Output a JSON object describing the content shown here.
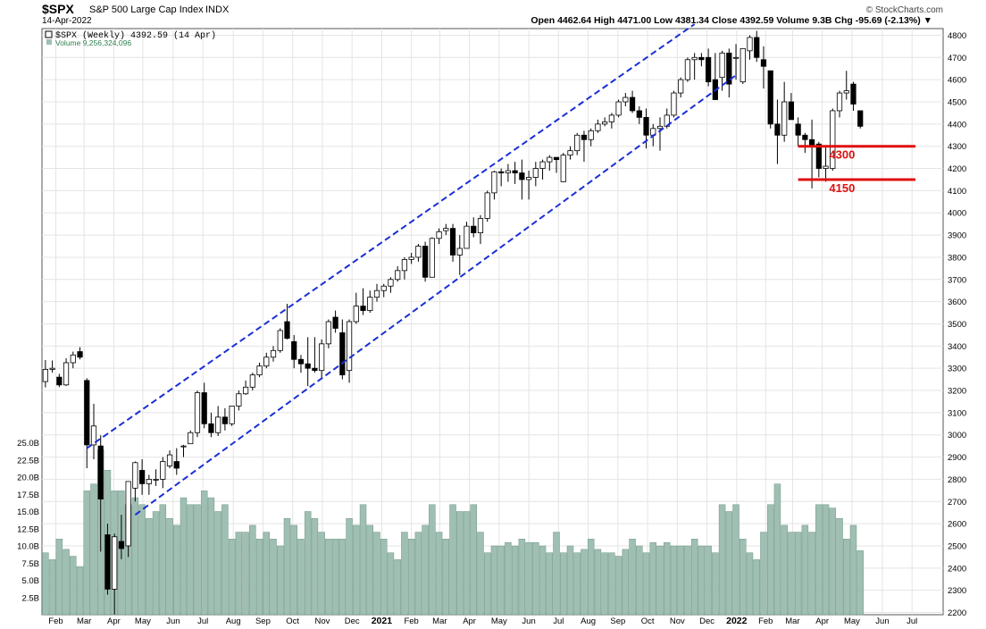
{
  "header": {
    "symbol": "$SPX",
    "name": "S&P 500 Large Cap Index",
    "exchange": "INDX",
    "date": "14-Apr-2022",
    "quote": "Open 4462.64  High 4471.00  Low 4381.34  Close 4392.59  Volume 9.3B  Chg -95.69 (-2.13%) ▼",
    "brand": "© StockCharts.com"
  },
  "legend": {
    "price": "$SPX (Weekly) 4392.59 (14 Apr)",
    "volume": "Volume 9,256,324,096"
  },
  "colors": {
    "up": "#ffffff",
    "down": "#000000",
    "volume": "#9fbfb2",
    "volume_edge": "#6f9586",
    "channel": "#1a2fd6",
    "support": "#e01010",
    "grid": "#e4e4e4"
  },
  "annotations": [
    {
      "label": "4300",
      "value": 4300
    },
    {
      "label": "4150",
      "value": 4150
    }
  ],
  "chart_data": {
    "type": "candlestick",
    "title": "$SPX S&P 500 Large Cap Index INDX",
    "y_price_range": [
      2190,
      4830
    ],
    "y_price_ticks": [
      2200,
      2300,
      2400,
      2500,
      2600,
      2700,
      2800,
      2900,
      3000,
      3100,
      3200,
      3300,
      3400,
      3500,
      3600,
      3700,
      3800,
      3900,
      4000,
      4100,
      4200,
      4300,
      4400,
      4500,
      4600,
      4700,
      4800
    ],
    "y_volume_ticks": [
      "2.5B",
      "5.0B",
      "7.5B",
      "10.0B",
      "12.5B",
      "15.0B",
      "17.5B",
      "20.0B",
      "22.5B",
      "25.0B"
    ],
    "y_volume_values": [
      2.5,
      5.0,
      7.5,
      10.0,
      12.5,
      15.0,
      17.5,
      20.0,
      22.5,
      25.0
    ],
    "x_ticks": [
      "Feb",
      "Mar",
      "Apr",
      "May",
      "Jun",
      "Jul",
      "Aug",
      "Sep",
      "Oct",
      "Nov",
      "Dec",
      "2021",
      "Feb",
      "Mar",
      "Apr",
      "May",
      "Jun",
      "Jul",
      "Aug",
      "Sep",
      "Oct",
      "Nov",
      "Dec",
      "2022",
      "Feb",
      "Mar",
      "Apr",
      "May",
      "Jun",
      "Jul"
    ],
    "x_tick_week": [
      1.5,
      5.6,
      9.9,
      14.1,
      18.5,
      22.8,
      27.2,
      31.5,
      35.8,
      40.1,
      44.4,
      48.7,
      53,
      57.1,
      61.4,
      65.7,
      70,
      74.3,
      78.6,
      82.9,
      87.2,
      91.5,
      95.8,
      100.1,
      104.3,
      108.2,
      112.5,
      116.8,
      121.2,
      125.5
    ],
    "x_week_range": [
      -0.5,
      130
    ],
    "channels": [
      {
        "name": "upper",
        "from": {
          "week": 6,
          "value": 2940
        },
        "to": {
          "week": 94,
          "value": 4850
        }
      },
      {
        "name": "lower",
        "from": {
          "week": 13,
          "value": 2640
        },
        "to": {
          "week": 100,
          "value": 4620
        }
      }
    ],
    "weeks": [
      {
        "o": 3240,
        "h": 3337,
        "l": 3214,
        "c": 3295,
        "v": 9.0
      },
      {
        "o": 3295,
        "h": 3335,
        "l": 3280,
        "c": 3300,
        "v": 8.0
      },
      {
        "o": 3260,
        "h": 3275,
        "l": 3215,
        "c": 3225,
        "v": 11.0
      },
      {
        "o": 3225,
        "h": 3345,
        "l": 3220,
        "c": 3325,
        "v": 9.5
      },
      {
        "o": 3325,
        "h": 3375,
        "l": 3300,
        "c": 3360,
        "v": 8.5
      },
      {
        "o": 3375,
        "h": 3395,
        "l": 3340,
        "c": 3350,
        "v": 7.0
      },
      {
        "o": 3245,
        "h": 3255,
        "l": 2850,
        "c": 2955,
        "v": 18.0
      },
      {
        "o": 2955,
        "h": 3140,
        "l": 2890,
        "c": 3040,
        "v": 19.0
      },
      {
        "o": 2950,
        "h": 2998,
        "l": 2474,
        "c": 2711,
        "v": 24.0
      },
      {
        "o": 2550,
        "h": 2600,
        "l": 2280,
        "c": 2305,
        "v": 21.0
      },
      {
        "o": 2305,
        "h": 2555,
        "l": 2191,
        "c": 2541,
        "v": 18.0
      },
      {
        "o": 2520,
        "h": 2640,
        "l": 2440,
        "c": 2488,
        "v": 18.0
      },
      {
        "o": 2500,
        "h": 2790,
        "l": 2450,
        "c": 2790,
        "v": 16.0
      },
      {
        "o": 2760,
        "h": 2880,
        "l": 2700,
        "c": 2875,
        "v": 17.0
      },
      {
        "o": 2840,
        "h": 2890,
        "l": 2730,
        "c": 2780,
        "v": 16.0
      },
      {
        "o": 2780,
        "h": 2820,
        "l": 2730,
        "c": 2800,
        "v": 14.0
      },
      {
        "o": 2800,
        "h": 2845,
        "l": 2770,
        "c": 2800,
        "v": 15.0
      },
      {
        "o": 2800,
        "h": 2900,
        "l": 2760,
        "c": 2880,
        "v": 16.0
      },
      {
        "o": 2860,
        "h": 2930,
        "l": 2850,
        "c": 2910,
        "v": 14.0
      },
      {
        "o": 2880,
        "h": 2940,
        "l": 2820,
        "c": 2850,
        "v": 13.0
      },
      {
        "o": 2950,
        "h": 2955,
        "l": 2900,
        "c": 2950,
        "v": 17.0
      },
      {
        "o": 2960,
        "h": 3020,
        "l": 2990,
        "c": 3010,
        "v": 16.0
      },
      {
        "o": 3010,
        "h": 3200,
        "l": 2990,
        "c": 3190,
        "v": 16.0
      },
      {
        "o": 3190,
        "h": 3235,
        "l": 3030,
        "c": 3050,
        "v": 18.0
      },
      {
        "o": 3050,
        "h": 3100,
        "l": 2990,
        "c": 3010,
        "v": 17.0
      },
      {
        "o": 3010,
        "h": 3130,
        "l": 2995,
        "c": 3080,
        "v": 15.0
      },
      {
        "o": 3080,
        "h": 3120,
        "l": 3020,
        "c": 3050,
        "v": 16.0
      },
      {
        "o": 3050,
        "h": 3130,
        "l": 3040,
        "c": 3130,
        "v": 11.0
      },
      {
        "o": 3130,
        "h": 3200,
        "l": 3110,
        "c": 3185,
        "v": 12.0
      },
      {
        "o": 3185,
        "h": 3245,
        "l": 3180,
        "c": 3215,
        "v": 12.0
      },
      {
        "o": 3215,
        "h": 3280,
        "l": 3200,
        "c": 3270,
        "v": 13.0
      },
      {
        "o": 3270,
        "h": 3325,
        "l": 3260,
        "c": 3310,
        "v": 11.0
      },
      {
        "o": 3310,
        "h": 3370,
        "l": 3300,
        "c": 3350,
        "v": 12.0
      },
      {
        "o": 3350,
        "h": 3400,
        "l": 3330,
        "c": 3380,
        "v": 11.0
      },
      {
        "o": 3380,
        "h": 3480,
        "l": 3370,
        "c": 3470,
        "v": 10.0
      },
      {
        "o": 3510,
        "h": 3590,
        "l": 3430,
        "c": 3435,
        "v": 14.0
      },
      {
        "o": 3420,
        "h": 3450,
        "l": 3300,
        "c": 3340,
        "v": 13.0
      },
      {
        "o": 3340,
        "h": 3360,
        "l": 3280,
        "c": 3320,
        "v": 11.0
      },
      {
        "o": 3320,
        "h": 3440,
        "l": 3220,
        "c": 3300,
        "v": 15.0
      },
      {
        "o": 3300,
        "h": 3440,
        "l": 3280,
        "c": 3290,
        "v": 14.0
      },
      {
        "o": 3290,
        "h": 3430,
        "l": 3250,
        "c": 3410,
        "v": 12.0
      },
      {
        "o": 3410,
        "h": 3520,
        "l": 3390,
        "c": 3510,
        "v": 11.0
      },
      {
        "o": 3530,
        "h": 3560,
        "l": 3460,
        "c": 3480,
        "v": 11.0
      },
      {
        "o": 3460,
        "h": 3520,
        "l": 3250,
        "c": 3270,
        "v": 11.0
      },
      {
        "o": 3290,
        "h": 3520,
        "l": 3235,
        "c": 3510,
        "v": 14.0
      },
      {
        "o": 3510,
        "h": 3640,
        "l": 3500,
        "c": 3580,
        "v": 13.0
      },
      {
        "o": 3580,
        "h": 3660,
        "l": 3540,
        "c": 3560,
        "v": 16.0
      },
      {
        "o": 3560,
        "h": 3650,
        "l": 3550,
        "c": 3620,
        "v": 13.0
      },
      {
        "o": 3620,
        "h": 3680,
        "l": 3600,
        "c": 3650,
        "v": 12.0
      },
      {
        "o": 3650,
        "h": 3680,
        "l": 3620,
        "c": 3670,
        "v": 11.0
      },
      {
        "o": 3670,
        "h": 3710,
        "l": 3640,
        "c": 3700,
        "v": 9.0
      },
      {
        "o": 3700,
        "h": 3760,
        "l": 3690,
        "c": 3740,
        "v": 8.0
      },
      {
        "o": 3740,
        "h": 3800,
        "l": 3700,
        "c": 3790,
        "v": 12.0
      },
      {
        "o": 3790,
        "h": 3820,
        "l": 3770,
        "c": 3800,
        "v": 11.0
      },
      {
        "o": 3800,
        "h": 3860,
        "l": 3780,
        "c": 3850,
        "v": 12.0
      },
      {
        "o": 3850,
        "h": 3870,
        "l": 3690,
        "c": 3710,
        "v": 13.0
      },
      {
        "o": 3710,
        "h": 3890,
        "l": 3710,
        "c": 3885,
        "v": 16.0
      },
      {
        "o": 3885,
        "h": 3930,
        "l": 3860,
        "c": 3915,
        "v": 12.0
      },
      {
        "o": 3920,
        "h": 3950,
        "l": 3900,
        "c": 3930,
        "v": 11.0
      },
      {
        "o": 3930,
        "h": 3950,
        "l": 3780,
        "c": 3810,
        "v": 16.0
      },
      {
        "o": 3810,
        "h": 3900,
        "l": 3720,
        "c": 3840,
        "v": 15.0
      },
      {
        "o": 3840,
        "h": 3960,
        "l": 3840,
        "c": 3940,
        "v": 15.0
      },
      {
        "o": 3940,
        "h": 3980,
        "l": 3890,
        "c": 3910,
        "v": 16.0
      },
      {
        "o": 3910,
        "h": 3990,
        "l": 3860,
        "c": 3975,
        "v": 12.0
      },
      {
        "o": 3975,
        "h": 4100,
        "l": 3960,
        "c": 4090,
        "v": 9.0
      },
      {
        "o": 4090,
        "h": 4190,
        "l": 4060,
        "c": 4185,
        "v": 10.0
      },
      {
        "o": 4185,
        "h": 4200,
        "l": 4120,
        "c": 4180,
        "v": 10.0
      },
      {
        "o": 4180,
        "h": 4220,
        "l": 4140,
        "c": 4190,
        "v": 10.5
      },
      {
        "o": 4190,
        "h": 4230,
        "l": 4130,
        "c": 4180,
        "v": 10.0
      },
      {
        "o": 4180,
        "h": 4240,
        "l": 4060,
        "c": 4150,
        "v": 11.0
      },
      {
        "o": 4150,
        "h": 4190,
        "l": 4060,
        "c": 4160,
        "v": 10.5
      },
      {
        "o": 4160,
        "h": 4230,
        "l": 4120,
        "c": 4200,
        "v": 10.5
      },
      {
        "o": 4200,
        "h": 4240,
        "l": 4150,
        "c": 4230,
        "v": 10.0
      },
      {
        "o": 4230,
        "h": 4260,
        "l": 4190,
        "c": 4250,
        "v": 9.0
      },
      {
        "o": 4250,
        "h": 4250,
        "l": 4180,
        "c": 4240,
        "v": 12.0
      },
      {
        "o": 4140,
        "h": 4270,
        "l": 4140,
        "c": 4260,
        "v": 9.0
      },
      {
        "o": 4260,
        "h": 4300,
        "l": 4240,
        "c": 4280,
        "v": 10.0
      },
      {
        "o": 4280,
        "h": 4360,
        "l": 4260,
        "c": 4350,
        "v": 9.0
      },
      {
        "o": 4350,
        "h": 4370,
        "l": 4230,
        "c": 4330,
        "v": 9.5
      },
      {
        "o": 4330,
        "h": 4380,
        "l": 4300,
        "c": 4370,
        "v": 11.0
      },
      {
        "o": 4370,
        "h": 4420,
        "l": 4360,
        "c": 4400,
        "v": 9.5
      },
      {
        "o": 4400,
        "h": 4430,
        "l": 4390,
        "c": 4410,
        "v": 9.0
      },
      {
        "o": 4410,
        "h": 4450,
        "l": 4380,
        "c": 4440,
        "v": 9.0
      },
      {
        "o": 4440,
        "h": 4510,
        "l": 4430,
        "c": 4500,
        "v": 8.5
      },
      {
        "o": 4500,
        "h": 4540,
        "l": 4480,
        "c": 4520,
        "v": 9.5
      },
      {
        "o": 4520,
        "h": 4550,
        "l": 4450,
        "c": 4460,
        "v": 11.0
      },
      {
        "o": 4460,
        "h": 4480,
        "l": 4400,
        "c": 4430,
        "v": 10.0
      },
      {
        "o": 4430,
        "h": 4470,
        "l": 4290,
        "c": 4350,
        "v": 9.0
      },
      {
        "o": 4350,
        "h": 4400,
        "l": 4300,
        "c": 4380,
        "v": 10.5
      },
      {
        "o": 4380,
        "h": 4430,
        "l": 4280,
        "c": 4390,
        "v": 10.0
      },
      {
        "o": 4390,
        "h": 4470,
        "l": 4380,
        "c": 4440,
        "v": 10.5
      },
      {
        "o": 4440,
        "h": 4550,
        "l": 4430,
        "c": 4540,
        "v": 10.0
      },
      {
        "o": 4540,
        "h": 4610,
        "l": 4520,
        "c": 4600,
        "v": 10.0
      },
      {
        "o": 4600,
        "h": 4700,
        "l": 4590,
        "c": 4690,
        "v": 10.0
      },
      {
        "o": 4690,
        "h": 4720,
        "l": 4600,
        "c": 4700,
        "v": 11.0
      },
      {
        "o": 4700,
        "h": 4720,
        "l": 4660,
        "c": 4690,
        "v": 10.0
      },
      {
        "o": 4700,
        "h": 4740,
        "l": 4570,
        "c": 4590,
        "v": 10.0
      },
      {
        "o": 4600,
        "h": 4720,
        "l": 4510,
        "c": 4510,
        "v": 9.0
      },
      {
        "o": 4610,
        "h": 4730,
        "l": 4550,
        "c": 4720,
        "v": 16.0
      },
      {
        "o": 4720,
        "h": 4740,
        "l": 4520,
        "c": 4580,
        "v": 15.0
      },
      {
        "o": 4700,
        "h": 4760,
        "l": 4600,
        "c": 4700,
        "v": 16.0
      },
      {
        "o": 4590,
        "h": 4740,
        "l": 4580,
        "c": 4740,
        "v": 11.0
      },
      {
        "o": 4730,
        "h": 4800,
        "l": 4690,
        "c": 4790,
        "v": 9.0
      },
      {
        "o": 4790,
        "h": 4820,
        "l": 4680,
        "c": 4700,
        "v": 8.0
      },
      {
        "o": 4690,
        "h": 4750,
        "l": 4560,
        "c": 4660,
        "v": 12.0
      },
      {
        "o": 4640,
        "h": 4640,
        "l": 4380,
        "c": 4400,
        "v": 16.0
      },
      {
        "o": 4400,
        "h": 4510,
        "l": 4220,
        "c": 4350,
        "v": 19.0
      },
      {
        "o": 4350,
        "h": 4590,
        "l": 4320,
        "c": 4500,
        "v": 13.0
      },
      {
        "o": 4500,
        "h": 4540,
        "l": 4420,
        "c": 4420,
        "v": 12.0
      },
      {
        "o": 4400,
        "h": 4430,
        "l": 4300,
        "c": 4350,
        "v": 12.0
      },
      {
        "o": 4350,
        "h": 4360,
        "l": 4270,
        "c": 4330,
        "v": 13.0
      },
      {
        "o": 4330,
        "h": 4420,
        "l": 4110,
        "c": 4300,
        "v": 12.0
      },
      {
        "o": 4310,
        "h": 4320,
        "l": 4160,
        "c": 4200,
        "v": 16.0
      },
      {
        "o": 4200,
        "h": 4300,
        "l": 4140,
        "c": 4210,
        "v": 16.0
      },
      {
        "o": 4200,
        "h": 4470,
        "l": 4190,
        "c": 4460,
        "v": 15.5
      },
      {
        "o": 4460,
        "h": 4550,
        "l": 4430,
        "c": 4540,
        "v": 14.0
      },
      {
        "o": 4540,
        "h": 4640,
        "l": 4510,
        "c": 4550,
        "v": 11.0
      },
      {
        "o": 4580,
        "h": 4590,
        "l": 4460,
        "c": 4490,
        "v": 13.0
      },
      {
        "o": 4460,
        "h": 4460,
        "l": 4380,
        "c": 4390,
        "v": 9.3
      }
    ]
  }
}
